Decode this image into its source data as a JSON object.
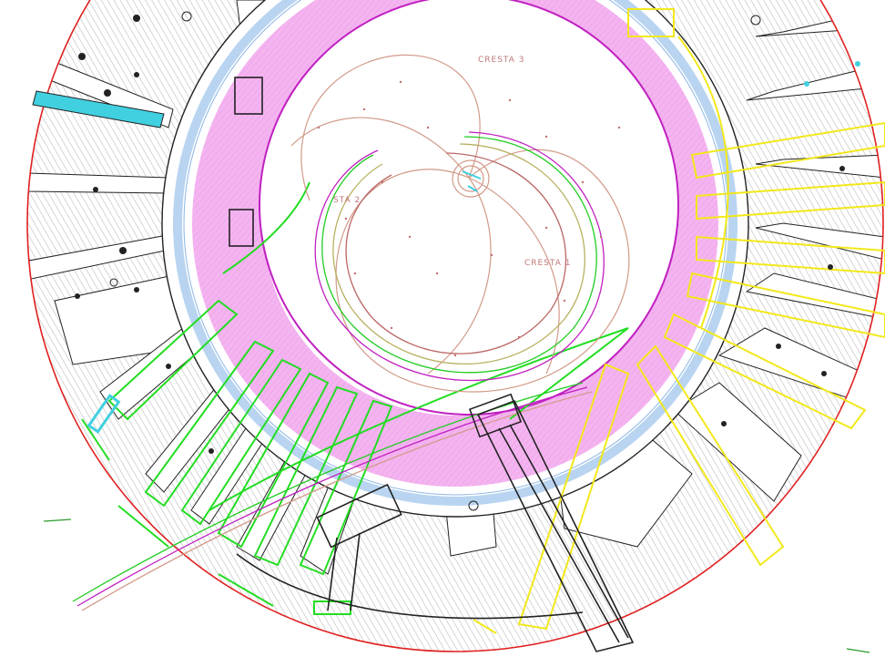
{
  "drawing": {
    "labels": {
      "cresta_1": "CRESTA 1",
      "cresta_2": "STA 2",
      "cresta_3": "CRESTA 3"
    },
    "colors": {
      "outer_boundary": "#e02020",
      "inner_ring": "#c020c0",
      "fill_pink": "#f2a8ee",
      "green_lines": "#22dd22",
      "yellow_lines": "#f2e81a",
      "cyan_accent": "#40d0e0",
      "spiral_lines": "#d29a88",
      "dark_lines": "#222222"
    }
  }
}
